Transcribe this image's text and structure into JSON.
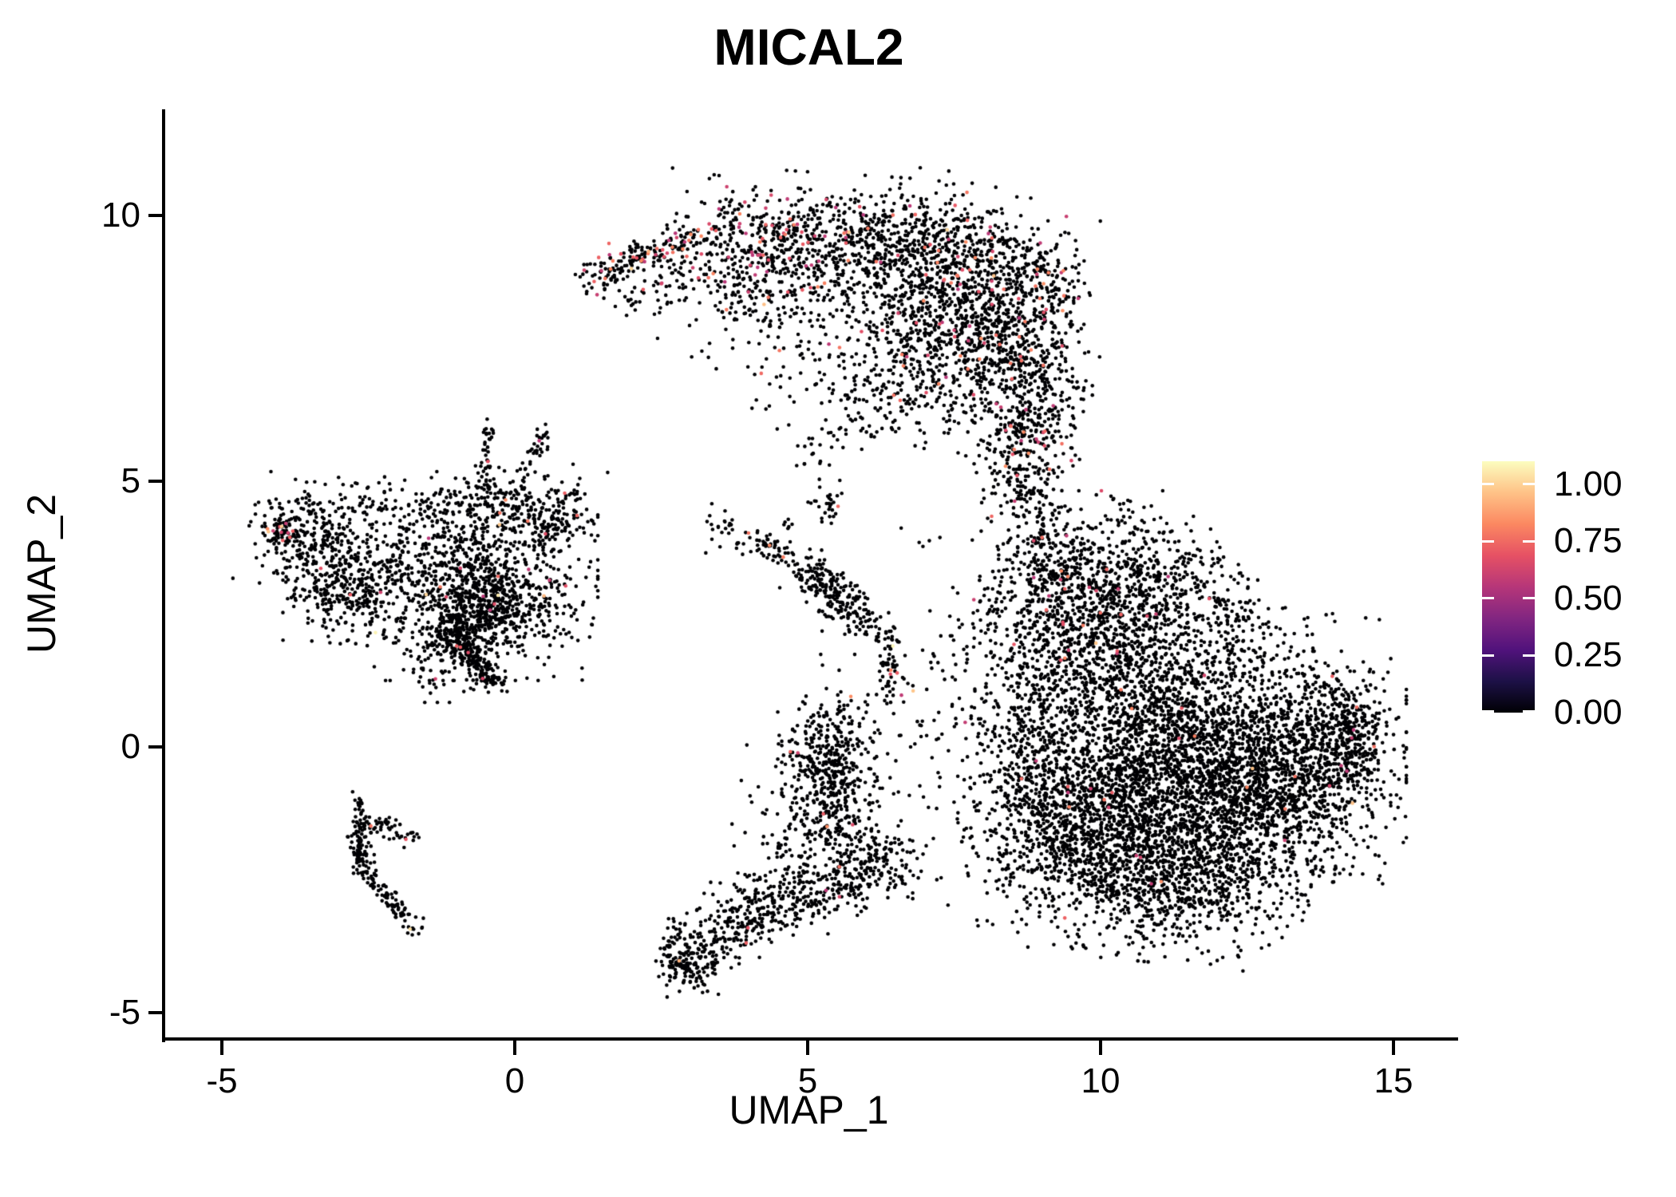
{
  "colors": {
    "background": "#FFFFFF",
    "text": "#000000",
    "axis": "#000000",
    "legend_tick": "#FFFFFF"
  },
  "chart_data": {
    "type": "scatter",
    "title": "MICAL2",
    "xlabel": "UMAP_1",
    "ylabel": "UMAP_2",
    "xlim": [
      -6.0,
      16.0
    ],
    "ylim": [
      -5.5,
      12.0
    ],
    "grid": false,
    "x_ticks": [
      {
        "v": -5,
        "label": "-5"
      },
      {
        "v": 0,
        "label": "0"
      },
      {
        "v": 5,
        "label": "5"
      },
      {
        "v": 10,
        "label": "10"
      },
      {
        "v": 15,
        "label": "15"
      }
    ],
    "y_ticks": [
      {
        "v": 10,
        "label": "10"
      },
      {
        "v": 5,
        "label": "5"
      },
      {
        "v": 0,
        "label": "0"
      },
      {
        "v": -5,
        "label": "-5"
      }
    ],
    "legend": {
      "position": "right",
      "vmin": 0.0,
      "vmax": 1.1,
      "labels": [
        {
          "v": 1.0,
          "text": "1.00"
        },
        {
          "v": 0.75,
          "text": "0.75"
        },
        {
          "v": 0.5,
          "text": "0.50"
        },
        {
          "v": 0.25,
          "text": "0.25"
        },
        {
          "v": 0.0,
          "text": "0.00"
        }
      ],
      "colormap": "magma",
      "stops": [
        "#000004",
        "#1D1147",
        "#51127C",
        "#822681",
        "#B63679",
        "#E65164",
        "#FB8861",
        "#FEC287",
        "#FCFDBF"
      ]
    },
    "points": {
      "radius_px": 2.3,
      "value_zero_color": "#000004",
      "value_mid_color_example": "#E05A68",
      "value_high_color_example": "#F6EDAE",
      "total_approx": 15900
    },
    "seed": 1337,
    "clusters": [
      {
        "id": "top-arm",
        "type": "strip",
        "path": [
          [
            1.22,
            8.78
          ],
          [
            2.0,
            9.2
          ],
          [
            3.2,
            9.65
          ]
        ],
        "sig": 0.15,
        "n": 175,
        "pm": 0.2,
        "ph": 0.004
      },
      {
        "id": "top-arm-fringe",
        "type": "strip",
        "path": [
          [
            1.9,
            8.45
          ],
          [
            3.0,
            8.95
          ]
        ],
        "sig": 0.28,
        "n": 70,
        "pm": 0.08,
        "ph": 0
      },
      {
        "id": "top-left",
        "type": "blob",
        "cx": 4.25,
        "cy": 9.35,
        "sx": 0.75,
        "sy": 0.52,
        "rot": -10,
        "n": 340,
        "pm": 0.1,
        "ph": 0.003
      },
      {
        "id": "top-mid",
        "type": "blob",
        "cx": 6.0,
        "cy": 9.55,
        "sx": 1.05,
        "sy": 0.5,
        "rot": -4,
        "n": 560,
        "pm": 0.05,
        "ph": 0.002
      },
      {
        "id": "top-right",
        "type": "blob",
        "cx": 7.6,
        "cy": 8.85,
        "sx": 0.85,
        "sy": 0.75,
        "rot": -20,
        "n": 640,
        "pm": 0.05,
        "ph": 0.002
      },
      {
        "id": "top-right-low",
        "type": "blob",
        "cx": 8.5,
        "cy": 7.55,
        "sx": 0.6,
        "sy": 0.95,
        "rot": 8,
        "n": 520,
        "pm": 0.04,
        "ph": 0.002
      },
      {
        "id": "top-center-low",
        "type": "blob",
        "cx": 7.0,
        "cy": 7.6,
        "sx": 0.72,
        "sy": 0.65,
        "rot": 0,
        "n": 330,
        "pm": 0.05,
        "ph": 0.002
      },
      {
        "id": "top-bottom-right",
        "type": "blob",
        "cx": 8.78,
        "cy": 6.2,
        "sx": 0.45,
        "sy": 0.6,
        "rot": 0,
        "n": 230,
        "pm": 0.05,
        "ph": 0
      },
      {
        "id": "top-hook",
        "type": "blob",
        "cx": 9.12,
        "cy": 8.9,
        "sx": 0.24,
        "sy": 0.4,
        "rot": 15,
        "n": 95,
        "pm": 0.12,
        "ph": 0
      },
      {
        "id": "top-bay-sparse",
        "type": "blob",
        "cx": 5.3,
        "cy": 7.85,
        "sx": 0.95,
        "sy": 0.8,
        "rot": 0,
        "n": 160,
        "pm": 0.06,
        "ph": 0
      },
      {
        "id": "top-under-arm",
        "type": "blob",
        "cx": 4.0,
        "cy": 8.35,
        "sx": 0.7,
        "sy": 0.5,
        "rot": 0,
        "n": 90,
        "pm": 0.06,
        "ph": 0
      },
      {
        "id": "top-lower-fringe",
        "type": "strip",
        "path": [
          [
            5.1,
            6.6
          ],
          [
            6.4,
            6.15
          ],
          [
            7.5,
            6.4
          ]
        ],
        "sig": 0.38,
        "n": 120,
        "pm": 0.03,
        "ph": 0
      },
      {
        "id": "top-stray",
        "type": "blob",
        "cx": 5.2,
        "cy": 5.8,
        "sx": 0.3,
        "sy": 0.25,
        "rot": 0,
        "n": 22,
        "pm": 0.04,
        "ph": 0
      },
      {
        "id": "neck-upper",
        "type": "strip",
        "path": [
          [
            8.75,
            5.8
          ],
          [
            8.68,
            4.7
          ],
          [
            8.95,
            3.9
          ]
        ],
        "sig": 0.3,
        "n": 185,
        "pm": 0.05,
        "ph": 0
      },
      {
        "id": "neck-lower",
        "type": "strip",
        "path": [
          [
            9.0,
            3.7
          ],
          [
            9.45,
            2.8
          ]
        ],
        "sig": 0.35,
        "n": 160,
        "pm": 0.04,
        "ph": 0
      },
      {
        "id": "right-upper-left",
        "type": "blob",
        "cx": 9.7,
        "cy": 2.9,
        "sx": 0.75,
        "sy": 0.8,
        "rot": 0,
        "n": 430,
        "pm": 0.02,
        "ph": 0.002
      },
      {
        "id": "right-upper",
        "type": "blob",
        "cx": 10.65,
        "cy": 3.1,
        "sx": 0.7,
        "sy": 0.6,
        "rot": -15,
        "n": 310,
        "pm": 0.01,
        "ph": 0
      },
      {
        "id": "right-upper-edge",
        "type": "strip",
        "path": [
          [
            11.3,
            3.6
          ],
          [
            12.1,
            2.6
          ],
          [
            12.7,
            1.8
          ]
        ],
        "sig": 0.35,
        "n": 140,
        "pm": 0.01,
        "ph": 0
      },
      {
        "id": "right-core",
        "type": "blob",
        "cx": 11.2,
        "cy": 0.35,
        "sx": 1.35,
        "sy": 1.05,
        "rot": -8,
        "n": 1950,
        "pm": 0.006,
        "ph": 0.001
      },
      {
        "id": "right-east",
        "type": "blob",
        "cx": 12.7,
        "cy": -0.9,
        "sx": 1.05,
        "sy": 0.95,
        "rot": 0,
        "n": 1300,
        "pm": 0.005,
        "ph": 0.001
      },
      {
        "id": "right-southwest",
        "type": "blob",
        "cx": 10.4,
        "cy": -1.6,
        "sx": 1.15,
        "sy": 0.85,
        "rot": 10,
        "n": 1200,
        "pm": 0.006,
        "ph": 0.001
      },
      {
        "id": "right-east-bump",
        "type": "blob",
        "cx": 13.9,
        "cy": 0.0,
        "sx": 0.55,
        "sy": 0.75,
        "rot": 0,
        "n": 430,
        "pm": 0.005,
        "ph": 0
      },
      {
        "id": "right-tip",
        "type": "blob",
        "cx": 14.35,
        "cy": 0.3,
        "sx": 0.2,
        "sy": 0.5,
        "rot": 0,
        "n": 110,
        "pm": 0.03,
        "ph": 0
      },
      {
        "id": "right-south",
        "type": "blob",
        "cx": 11.3,
        "cy": -2.6,
        "sx": 0.95,
        "sy": 0.62,
        "rot": -6,
        "n": 560,
        "pm": 0.004,
        "ph": 0
      },
      {
        "id": "right-west-bulge",
        "type": "blob",
        "cx": 9.4,
        "cy": -1.3,
        "sx": 0.72,
        "sy": 0.85,
        "rot": 0,
        "n": 450,
        "pm": 0.006,
        "ph": 0
      },
      {
        "id": "right-west-edge",
        "type": "strip",
        "path": [
          [
            8.6,
            1.6
          ],
          [
            8.9,
            0.3
          ],
          [
            8.75,
            -0.9
          ]
        ],
        "sig": 0.45,
        "n": 220,
        "pm": 0.01,
        "ph": 0
      },
      {
        "id": "right-upper-mid",
        "type": "blob",
        "cx": 10.1,
        "cy": 1.95,
        "sx": 0.9,
        "sy": 0.5,
        "rot": 0,
        "n": 300,
        "pm": 0.008,
        "ph": 0
      },
      {
        "id": "right-upper-scatter",
        "type": "blob",
        "cx": 8.4,
        "cy": 2.6,
        "sx": 0.45,
        "sy": 0.55,
        "rot": 0,
        "n": 60,
        "pm": 0.02,
        "ph": 0
      },
      {
        "id": "mid-scatter",
        "type": "blob",
        "cx": 7.6,
        "cy": 0.6,
        "sx": 0.95,
        "sy": 1.0,
        "rot": 0,
        "n": 130,
        "pm": 0.02,
        "ph": 0.004
      },
      {
        "id": "mid-column",
        "type": "strip",
        "path": [
          [
            6.35,
            2.25
          ],
          [
            6.45,
            0.95
          ]
        ],
        "sig": 0.12,
        "n": 70,
        "pm": 0.05,
        "ph": 0.01
      },
      {
        "id": "mid-blob",
        "type": "blob",
        "cx": 5.35,
        "cy": -0.4,
        "sx": 0.33,
        "sy": 0.52,
        "rot": 0,
        "n": 300,
        "pm": 0.008,
        "ph": 0
      },
      {
        "id": "mid-blob-halo",
        "type": "blob",
        "cx": 5.45,
        "cy": -0.3,
        "sx": 0.62,
        "sy": 0.85,
        "rot": 0,
        "n": 150,
        "pm": 0.01,
        "ph": 0
      },
      {
        "id": "mid-bridge",
        "type": "strip",
        "path": [
          [
            4.6,
            -1.2
          ],
          [
            5.8,
            -1.8
          ],
          [
            6.6,
            -2.3
          ]
        ],
        "sig": 0.45,
        "n": 250,
        "pm": 0.008,
        "ph": 0
      },
      {
        "id": "tail-knot",
        "type": "blob",
        "cx": 2.9,
        "cy": -4.0,
        "sx": 0.24,
        "sy": 0.32,
        "rot": 0,
        "n": 170,
        "pm": 0.02,
        "ph": 0.005
      },
      {
        "id": "tail-arm",
        "type": "strip",
        "path": [
          [
            3.15,
            -3.75
          ],
          [
            4.3,
            -3.15
          ],
          [
            5.5,
            -2.65
          ],
          [
            6.4,
            -2.15
          ]
        ],
        "sig": 0.28,
        "n": 420,
        "pm": 0.008,
        "ph": 0
      },
      {
        "id": "tail-upper",
        "type": "strip",
        "path": [
          [
            3.6,
            -2.95
          ],
          [
            4.9,
            -2.35
          ]
        ],
        "sig": 0.3,
        "n": 90,
        "pm": 0.01,
        "ph": 0
      },
      {
        "id": "small-mid-cluster",
        "type": "strip",
        "path": [
          [
            4.95,
            3.35
          ],
          [
            5.5,
            2.85
          ],
          [
            5.95,
            2.3
          ]
        ],
        "sig": 0.2,
        "n": 230,
        "pm": 0.004,
        "ph": 0
      },
      {
        "id": "small-mid-west",
        "type": "strip",
        "path": [
          [
            3.95,
            3.9
          ],
          [
            4.65,
            3.6
          ]
        ],
        "sig": 0.11,
        "n": 55,
        "pm": 0.03,
        "ph": 0
      },
      {
        "id": "small-mid-north",
        "type": "blob",
        "cx": 5.3,
        "cy": 4.55,
        "sx": 0.16,
        "sy": 0.22,
        "rot": 0,
        "n": 30,
        "pm": 0.03,
        "ph": 0
      },
      {
        "id": "small-mid-dots",
        "type": "blob",
        "cx": 4.65,
        "cy": 4.25,
        "sx": 0.08,
        "sy": 0.08,
        "rot": 0,
        "n": 6,
        "pm": 0,
        "ph": 0
      },
      {
        "id": "mid-west-scatter",
        "type": "blob",
        "cx": 3.5,
        "cy": 4.15,
        "sx": 0.28,
        "sy": 0.22,
        "rot": 0,
        "n": 26,
        "pm": 0.04,
        "ph": 0
      },
      {
        "id": "mid-singles",
        "type": "blob",
        "cx": 7.0,
        "cy": 3.95,
        "sx": 0.2,
        "sy": 0.15,
        "rot": 0,
        "n": 5,
        "pm": 0,
        "ph": 0
      },
      {
        "id": "left-tip",
        "type": "blob",
        "cx": -4.0,
        "cy": 4.1,
        "sx": 0.18,
        "sy": 0.32,
        "rot": 0,
        "n": 75,
        "pm": 0.1,
        "ph": 0.005
      },
      {
        "id": "left-lobe",
        "type": "blob",
        "cx": -3.3,
        "cy": 3.9,
        "sx": 0.52,
        "sy": 0.5,
        "rot": -20,
        "n": 300,
        "pm": 0.01,
        "ph": 0.002
      },
      {
        "id": "left-lobe-low",
        "type": "blob",
        "cx": -2.95,
        "cy": 2.95,
        "sx": 0.42,
        "sy": 0.42,
        "rot": 0,
        "n": 240,
        "pm": 0.008,
        "ph": 0
      },
      {
        "id": "left-between",
        "type": "blob",
        "cx": -1.9,
        "cy": 3.4,
        "sx": 0.55,
        "sy": 0.6,
        "rot": 0,
        "n": 140,
        "pm": 0.015,
        "ph": 0.004
      },
      {
        "id": "left-main",
        "type": "blob",
        "cx": -0.55,
        "cy": 3.05,
        "sx": 0.82,
        "sy": 0.75,
        "rot": 0,
        "n": 850,
        "pm": 0.013,
        "ph": 0.004
      },
      {
        "id": "left-core",
        "type": "blob",
        "cx": -0.5,
        "cy": 2.55,
        "sx": 0.45,
        "sy": 0.36,
        "rot": 0,
        "n": 320,
        "pm": 0.01,
        "ph": 0
      },
      {
        "id": "left-top-edge",
        "type": "strip",
        "path": [
          [
            -1.6,
            4.45
          ],
          [
            -0.6,
            4.75
          ],
          [
            0.4,
            4.5
          ]
        ],
        "sig": 0.25,
        "n": 160,
        "pm": 0.012,
        "ph": 0.004
      },
      {
        "id": "left-spike",
        "type": "strip",
        "path": [
          [
            -0.5,
            4.85
          ],
          [
            -0.44,
            6.05
          ]
        ],
        "sig": 0.06,
        "n": 40,
        "pm": 0.01,
        "ph": 0
      },
      {
        "id": "left-spike2",
        "type": "strip",
        "path": [
          [
            0.12,
            5.1
          ],
          [
            0.55,
            5.92
          ]
        ],
        "sig": 0.08,
        "n": 35,
        "pm": 0.05,
        "ph": 0
      },
      {
        "id": "left-north-scatter",
        "type": "blob",
        "cx": 0.1,
        "cy": 4.6,
        "sx": 0.45,
        "sy": 0.35,
        "rot": 0,
        "n": 60,
        "pm": 0.06,
        "ph": 0.03
      },
      {
        "id": "left-ne-scatter",
        "type": "blob",
        "cx": 1.0,
        "cy": 4.6,
        "sx": 0.25,
        "sy": 0.3,
        "rot": 0,
        "n": 45,
        "pm": 0.04,
        "ph": 0.04
      },
      {
        "id": "left-spur",
        "type": "strip",
        "path": [
          [
            0.3,
            3.9
          ],
          [
            0.88,
            4.35
          ]
        ],
        "sig": 0.15,
        "n": 70,
        "pm": 0.01,
        "ph": 0
      },
      {
        "id": "left-arm",
        "type": "strip",
        "path": [
          [
            -1.05,
            2.3
          ],
          [
            -0.75,
            1.7
          ],
          [
            -0.35,
            1.18
          ]
        ],
        "sig": 0.13,
        "n": 260,
        "pm": 0.01,
        "ph": 0
      },
      {
        "id": "left-arm-side",
        "type": "blob",
        "cx": -1.35,
        "cy": 1.75,
        "sx": 0.3,
        "sy": 0.38,
        "rot": 0,
        "n": 70,
        "pm": 0.02,
        "ph": 0
      },
      {
        "id": "left-top-scatter",
        "type": "blob",
        "cx": -2.35,
        "cy": 4.6,
        "sx": 0.25,
        "sy": 0.2,
        "rot": 0,
        "n": 25,
        "pm": 0.03,
        "ph": 0
      },
      {
        "id": "arc-vertical",
        "type": "strip",
        "path": [
          [
            -2.67,
            -0.95
          ],
          [
            -2.68,
            -2.15
          ]
        ],
        "sig": 0.06,
        "n": 55,
        "pm": 0.01,
        "ph": 0
      },
      {
        "id": "arc-knot",
        "type": "blob",
        "cx": -2.62,
        "cy": -1.85,
        "sx": 0.1,
        "sy": 0.22,
        "rot": 0,
        "n": 45,
        "pm": 0.01,
        "ph": 0
      },
      {
        "id": "arc-curve",
        "type": "strip",
        "path": [
          [
            -2.6,
            -2.2
          ],
          [
            -2.25,
            -2.8
          ],
          [
            -1.88,
            -3.18
          ]
        ],
        "sig": 0.08,
        "n": 80,
        "pm": 0.01,
        "ph": 0
      },
      {
        "id": "arc-flower",
        "type": "blob",
        "cx": -1.75,
        "cy": -3.42,
        "sx": 0.11,
        "sy": 0.11,
        "rot": 0,
        "n": 14,
        "pm": 0.1,
        "ph": 0.08
      },
      {
        "id": "arc-branch",
        "type": "strip",
        "path": [
          [
            -2.55,
            -1.35
          ],
          [
            -2.1,
            -1.52
          ],
          [
            -1.78,
            -1.72
          ]
        ],
        "sig": 0.1,
        "n": 50,
        "pm": 0.03,
        "ph": 0
      }
    ]
  }
}
